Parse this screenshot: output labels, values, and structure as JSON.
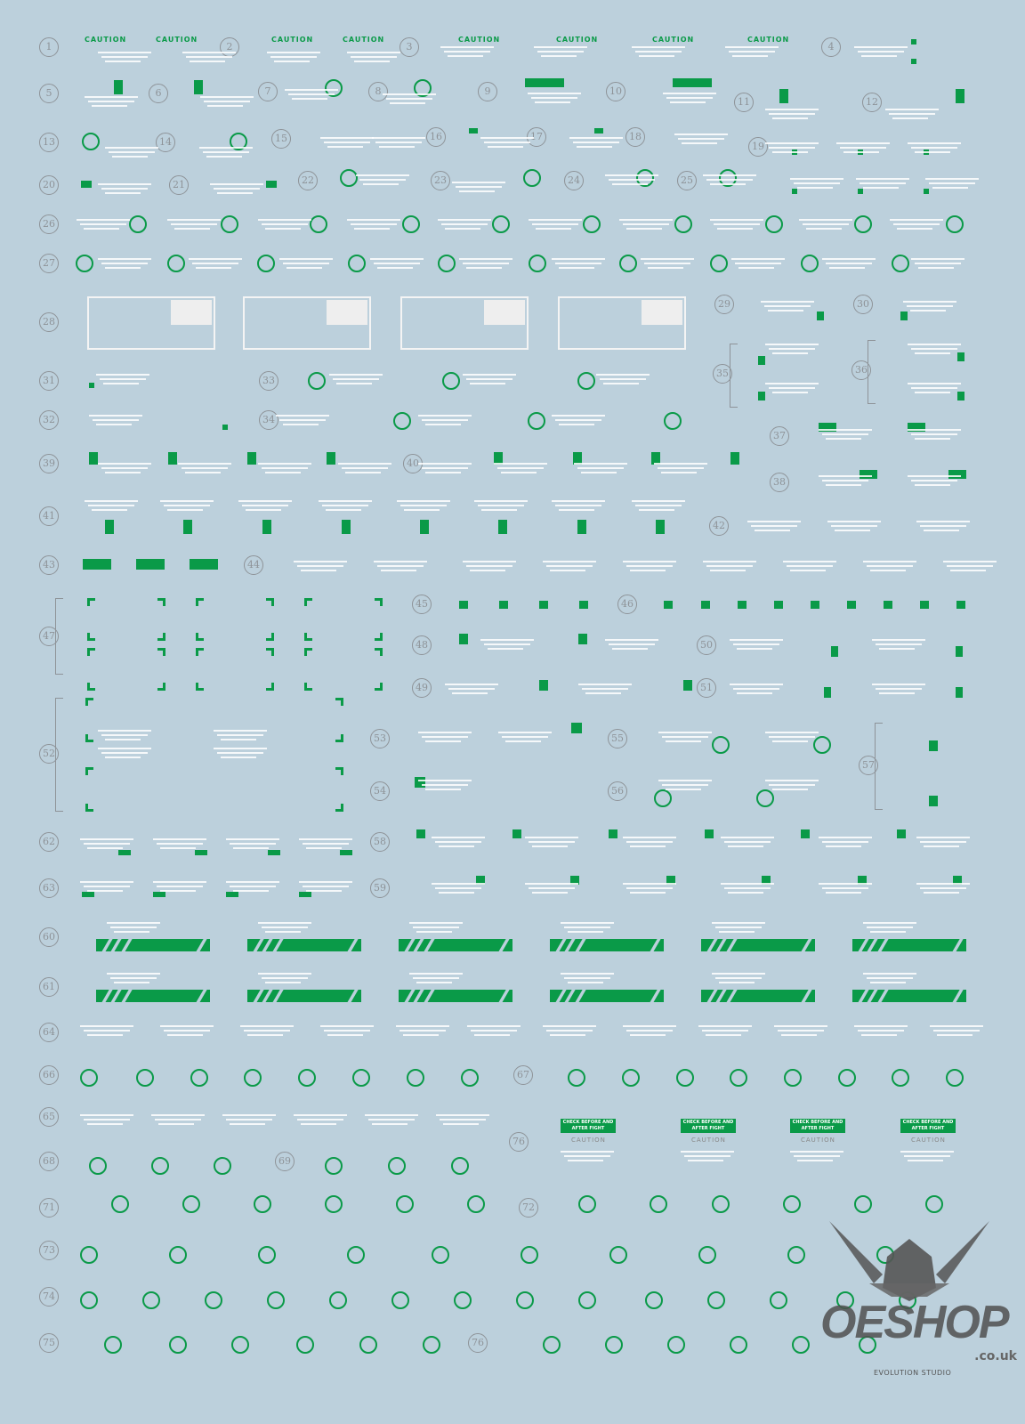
{
  "colors": {
    "background": "#bcd0dc",
    "decal_green": "#0a9a48",
    "decal_white": "#ffffff",
    "number_gray": "#8e9398"
  },
  "item_numbers": [
    "1",
    "2",
    "3",
    "4",
    "5",
    "6",
    "7",
    "8",
    "9",
    "10",
    "11",
    "12",
    "13",
    "14",
    "15",
    "16",
    "17",
    "18",
    "19",
    "20",
    "21",
    "22",
    "23",
    "24",
    "25",
    "26",
    "27",
    "28",
    "29",
    "30",
    "31",
    "32",
    "33",
    "34",
    "35",
    "36",
    "37",
    "38",
    "39",
    "40",
    "41",
    "42",
    "43",
    "44",
    "45",
    "46",
    "47",
    "48",
    "49",
    "50",
    "51",
    "52",
    "53",
    "54",
    "55",
    "56",
    "57",
    "58",
    "59",
    "60",
    "61",
    "62",
    "63",
    "64",
    "65",
    "66",
    "67",
    "68",
    "69",
    "71",
    "72",
    "73",
    "74",
    "75",
    "76",
    "76"
  ],
  "caution_label": "CAUTION",
  "check_label": "CHECK BEFORE AND AFTER FIGHT",
  "logo": {
    "name": "OESHOP",
    "domain": ".co.uk",
    "studio": "EVOLUTION STUDIO"
  }
}
